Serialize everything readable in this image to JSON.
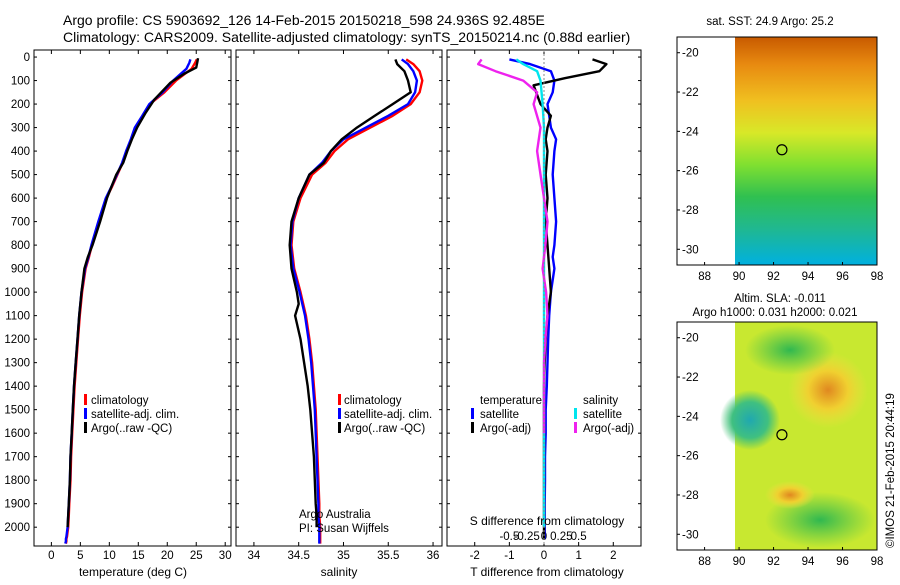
{
  "header": {
    "line1": "Argo profile: CS 5903692_126 14-Feb-2015 20150218_598 24.936S 92.485E",
    "line2": "Climatology: CARS2009. Satellite-adjusted climatology: synTS_20150214.nc (0.88d earlier)"
  },
  "colors": {
    "climatology": "#ff0000",
    "satellite": "#0000ff",
    "argo": "#000000",
    "salinity_satellite": "#00e5ee",
    "salinity_argo": "#ee22ee"
  },
  "depth_axis": {
    "ticks": [
      "0",
      "100",
      "200",
      "300",
      "400",
      "500",
      "600",
      "700",
      "800",
      "900",
      "1000",
      "1100",
      "1200",
      "1300",
      "1400",
      "1500",
      "1600",
      "1700",
      "1800",
      "1900",
      "2000"
    ],
    "ylim": [
      -30,
      2080
    ]
  },
  "temperature_panel": {
    "xlabel": "temperature (deg C)",
    "xticks": [
      "0",
      "5",
      "10",
      "15",
      "20",
      "25",
      "30"
    ],
    "legend": [
      "climatology",
      "satellite-adj. clim.",
      "Argo(..raw -QC)"
    ]
  },
  "salinity_panel": {
    "xlabel": "salinity",
    "xticks": [
      "34",
      "34.5",
      "35",
      "35.5",
      "36"
    ],
    "legend": [
      "climatology",
      "satellite-adj. clim.",
      "Argo(..raw -QC)"
    ],
    "annotation_line1": "Argo Australia",
    "annotation_line2": "PI: Susan Wijffels"
  },
  "difference_panel": {
    "xlabel": "T difference from climatology",
    "xticks": [
      "-2",
      "-1",
      "0",
      "1",
      "2"
    ],
    "s_label": "S difference from climatology",
    "s_ticks": [
      "-0.5",
      "-0.25",
      "0",
      "0.25",
      "0.5"
    ],
    "legend_temperature_title": "temperature",
    "legend_salinity_title": "salinity",
    "legend_temperature": [
      "satellite",
      "Argo(-adj)"
    ],
    "legend_salinity": [
      "satellite",
      "Argo(-adj)"
    ]
  },
  "sst_map": {
    "title": "sat. SST: 24.9 Argo: 25.2",
    "xticks": [
      "88",
      "90",
      "92",
      "94",
      "96",
      "98"
    ],
    "yticks": [
      "-20",
      "-22",
      "-24",
      "-26",
      "-28",
      "-30"
    ],
    "marker_lon": 92.485,
    "marker_lat": -24.936
  },
  "sla_map": {
    "title_line1": "Altim. SLA: -0.011",
    "title_line2": "Argo h1000: 0.031 h2000: 0.021",
    "xticks": [
      "88",
      "90",
      "92",
      "94",
      "96",
      "98"
    ],
    "yticks": [
      "-20",
      "-22",
      "-24",
      "-26",
      "-28",
      "-30"
    ],
    "marker_lon": 92.485,
    "marker_lat": -24.936
  },
  "footer": {
    "stamp": "©IMOS 21-Feb-2015 20:44:19"
  },
  "chart_data": [
    {
      "type": "line",
      "title": "",
      "xlabel": "temperature (deg C)",
      "ylabel": "",
      "xlim": [
        -3,
        31
      ],
      "ylim": [
        2080,
        -30
      ],
      "series": [
        {
          "name": "climatology",
          "x": [
            25.1,
            24.8,
            24.2,
            21.5,
            19.5,
            17.0,
            15.8,
            14.5,
            13.8,
            13.0,
            12.3,
            11.4,
            10.5,
            9.5,
            8.2,
            7.0,
            6.5,
            5.9,
            5.3,
            4.9,
            4.6,
            4.3,
            4.0,
            3.8,
            3.6,
            3.4,
            3.3,
            3.1,
            3.0,
            2.9,
            2.8,
            2.7,
            2.6,
            2.6,
            2.5
          ],
          "y": [
            10,
            25,
            50,
            100,
            150,
            200,
            250,
            300,
            350,
            400,
            450,
            500,
            550,
            600,
            700,
            800,
            850,
            900,
            1000,
            1100,
            1200,
            1300,
            1400,
            1500,
            1600,
            1700,
            1800,
            1900,
            1950,
            2000,
            2020,
            2040,
            2050,
            2060,
            2070
          ]
        },
        {
          "name": "satellite-adj. clim.",
          "x": [
            24.0,
            23.8,
            23.3,
            21.0,
            19.2,
            16.9,
            15.7,
            14.4,
            13.7,
            12.9,
            12.2,
            11.3,
            10.4,
            9.4,
            8.1,
            6.9,
            6.4,
            5.8,
            5.2,
            4.8,
            4.5,
            4.2,
            3.9,
            3.7,
            3.5,
            3.3,
            3.2,
            3.0,
            2.9,
            2.8,
            2.7,
            2.6,
            2.5,
            2.5,
            2.4
          ],
          "y": [
            10,
            25,
            50,
            100,
            150,
            200,
            250,
            300,
            350,
            400,
            450,
            500,
            550,
            600,
            700,
            800,
            850,
            900,
            1000,
            1100,
            1200,
            1300,
            1400,
            1500,
            1600,
            1700,
            1800,
            1900,
            1950,
            2000,
            2020,
            2040,
            2050,
            2060,
            2070
          ]
        },
        {
          "name": "Argo(..raw -QC)",
          "x": [
            25.3,
            25.2,
            25.0,
            23.0,
            20.5,
            17.8,
            16.2,
            14.8,
            13.9,
            13.1,
            12.4,
            11.2,
            10.4,
            9.6,
            8.4,
            7.1,
            6.3,
            5.7,
            5.2,
            4.8,
            4.5,
            4.2,
            3.9,
            3.7,
            3.5,
            3.3,
            3.2,
            3.0,
            2.9,
            2.8
          ],
          "y": [
            5,
            20,
            45,
            70,
            110,
            180,
            240,
            300,
            350,
            400,
            450,
            500,
            550,
            600,
            700,
            800,
            850,
            900,
            1000,
            1100,
            1200,
            1300,
            1400,
            1500,
            1600,
            1700,
            1800,
            1900,
            1950,
            2000
          ]
        }
      ]
    },
    {
      "type": "line",
      "title": "",
      "xlabel": "salinity",
      "ylabel": "",
      "xlim": [
        33.8,
        36.1
      ],
      "ylim": [
        2080,
        -30
      ],
      "series": [
        {
          "name": "climatology",
          "x": [
            35.7,
            35.78,
            35.85,
            35.88,
            35.85,
            35.75,
            35.55,
            35.3,
            35.05,
            34.9,
            34.8,
            34.65,
            34.52,
            34.44,
            34.42,
            34.45,
            34.52,
            34.58,
            34.62,
            34.65,
            34.67,
            34.69,
            34.7,
            34.71,
            34.72,
            34.73,
            34.73,
            34.74,
            34.74,
            34.74
          ],
          "y": [
            10,
            30,
            60,
            100,
            150,
            200,
            250,
            300,
            350,
            400,
            450,
            500,
            600,
            700,
            800,
            900,
            1000,
            1100,
            1200,
            1300,
            1400,
            1500,
            1600,
            1700,
            1800,
            1900,
            1950,
            2000,
            2040,
            2070
          ]
        },
        {
          "name": "satellite-adj. clim.",
          "x": [
            35.65,
            35.72,
            35.78,
            35.82,
            35.8,
            35.72,
            35.5,
            35.25,
            35.0,
            34.86,
            34.76,
            34.62,
            34.5,
            34.43,
            34.41,
            34.44,
            34.51,
            34.57,
            34.61,
            34.64,
            34.66,
            34.68,
            34.69,
            34.7,
            34.71,
            34.72,
            34.72,
            34.73,
            34.73,
            34.73
          ],
          "y": [
            10,
            30,
            60,
            100,
            150,
            200,
            250,
            300,
            350,
            400,
            450,
            500,
            600,
            700,
            800,
            900,
            1000,
            1100,
            1200,
            1300,
            1400,
            1500,
            1600,
            1700,
            1800,
            1900,
            1950,
            2000,
            2040,
            2070
          ]
        },
        {
          "name": "Argo(..raw -QC)",
          "x": [
            35.58,
            35.6,
            35.68,
            35.72,
            35.75,
            35.55,
            35.35,
            35.15,
            34.98,
            34.86,
            34.78,
            34.62,
            34.5,
            34.42,
            34.4,
            34.42,
            34.48,
            34.5,
            34.46,
            34.52,
            34.56,
            34.6,
            34.63,
            34.65,
            34.67,
            34.68,
            34.69,
            34.7,
            34.7
          ],
          "y": [
            10,
            30,
            60,
            100,
            150,
            200,
            250,
            300,
            350,
            400,
            450,
            500,
            600,
            700,
            800,
            900,
            1000,
            1050,
            1100,
            1200,
            1300,
            1400,
            1500,
            1600,
            1700,
            1800,
            1900,
            1950,
            2000
          ]
        }
      ]
    },
    {
      "type": "line",
      "title": "",
      "xlabel": "T difference from climatology",
      "ylabel": "",
      "xlim": [
        -2.8,
        2.8
      ],
      "ylim": [
        2080,
        -30
      ],
      "series": [
        {
          "name": "temperature satellite",
          "x": [
            -1.0,
            -0.4,
            0.2,
            0.3,
            0.25,
            0.1,
            0.15,
            0.2,
            0.35,
            0.3,
            0.25,
            0.3,
            0.35,
            0.3,
            0.25,
            0.3,
            0.2,
            0.15,
            0.12,
            0.1,
            0.08,
            0.05,
            0.05,
            0.03,
            0.03,
            0.02,
            0.02,
            0.02,
            0.02
          ],
          "y": [
            10,
            30,
            60,
            100,
            150,
            200,
            250,
            300,
            350,
            400,
            500,
            600,
            700,
            800,
            850,
            900,
            1000,
            1100,
            1200,
            1300,
            1400,
            1500,
            1600,
            1700,
            1800,
            1900,
            1950,
            2000,
            2050
          ]
        },
        {
          "name": "temperature Argo(-adj)",
          "x": [
            1.4,
            1.8,
            1.6,
            0.6,
            -0.3,
            -0.1,
            0.2,
            0.1,
            0.05,
            0.1,
            0.05,
            0.1,
            0.05,
            0.1,
            0.15,
            0.2,
            0.1,
            0.05,
            0.02,
            0.0,
            0.0,
            0.0,
            0.0,
            0.0,
            0.0,
            0.0,
            0.0,
            0.0
          ],
          "y": [
            10,
            30,
            60,
            90,
            120,
            200,
            250,
            300,
            350,
            400,
            500,
            600,
            700,
            800,
            900,
            1000,
            1100,
            1200,
            1300,
            1400,
            1500,
            1600,
            1700,
            1800,
            1900,
            1950,
            2000,
            2050
          ]
        },
        {
          "name": "salinity satellite",
          "x": [
            -0.4,
            -0.3,
            -0.1,
            -0.05,
            -0.02,
            0.0,
            0.0,
            0.0,
            0.0,
            0.0,
            0.0,
            0.0,
            0.0,
            0.0,
            0.0,
            0.0,
            0.0,
            0.0,
            0.0,
            0.0,
            0.0
          ],
          "y": [
            10,
            30,
            60,
            100,
            200,
            300,
            400,
            500,
            600,
            700,
            800,
            900,
            1000,
            1200,
            1400,
            1500,
            1600,
            1700,
            1800,
            1900,
            2000
          ]
        },
        {
          "name": "salinity Argo(-adj)",
          "x": [
            -0.9,
            -0.95,
            -0.7,
            -0.3,
            -0.1,
            -0.15,
            -0.05,
            -0.1,
            -0.05,
            0.0,
            0.05,
            0.02,
            -0.02,
            0.03,
            0.05,
            0.02,
            0.0,
            0.0,
            0.0,
            0.0
          ],
          "y": [
            10,
            30,
            60,
            100,
            150,
            200,
            300,
            400,
            500,
            600,
            700,
            800,
            900,
            1000,
            1100,
            1200,
            1300,
            1400,
            1500,
            1600
          ]
        }
      ]
    }
  ]
}
